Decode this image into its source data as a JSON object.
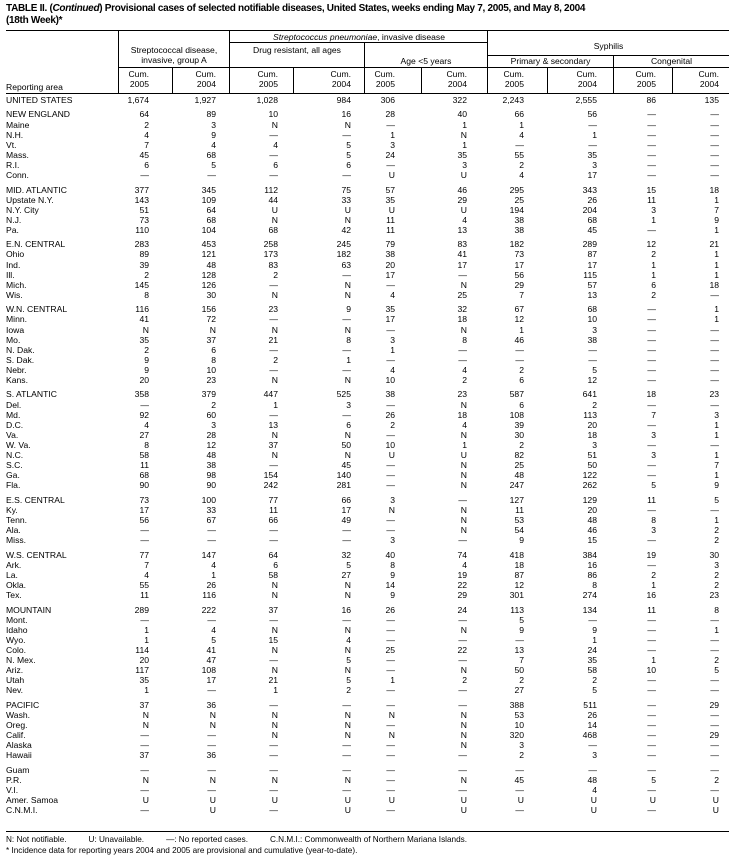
{
  "title": {
    "prefix": "TABLE II. (",
    "continued": "Continued",
    "rest": ") Provisional cases of selected notifiable diseases, United States, weeks ending May 7, 2005, and May 8, 2004",
    "line2": "(18th Week)*"
  },
  "header": {
    "reporting_area": "Reporting area",
    "strep_a": "Streptococcal disease, invasive, group A",
    "strep_pneu_italic": "Streptococcus pneumoniae",
    "strep_pneu_rest": ", invasive disease",
    "drug_resistant": "Drug resistant, all ages",
    "age_lt5": "Age <5 years",
    "syphilis": "Syphilis",
    "primary_secondary": "Primary & secondary",
    "congenital": "Congenital",
    "cum": "Cum.",
    "years": [
      "2005",
      "2004",
      "2005",
      "2004",
      "2005",
      "2004",
      "2005",
      "2004",
      "2005",
      "2004"
    ]
  },
  "sections": [
    [
      {
        "area": "UNITED STATES",
        "v": [
          "1,674",
          "1,927",
          "1,028",
          "984",
          "306",
          "322",
          "2,243",
          "2,555",
          "86",
          "135"
        ]
      }
    ],
    [
      {
        "area": "NEW ENGLAND",
        "v": [
          "64",
          "89",
          "10",
          "16",
          "28",
          "40",
          "66",
          "56",
          "—",
          "—"
        ]
      },
      {
        "area": "Maine",
        "v": [
          "2",
          "3",
          "N",
          "N",
          "—",
          "1",
          "1",
          "—",
          "—",
          "—"
        ]
      },
      {
        "area": "N.H.",
        "v": [
          "4",
          "9",
          "—",
          "—",
          "1",
          "N",
          "4",
          "1",
          "—",
          "—"
        ]
      },
      {
        "area": "Vt.",
        "v": [
          "7",
          "4",
          "4",
          "5",
          "3",
          "1",
          "—",
          "—",
          "—",
          "—"
        ]
      },
      {
        "area": "Mass.",
        "v": [
          "45",
          "68",
          "—",
          "5",
          "24",
          "35",
          "55",
          "35",
          "—",
          "—"
        ]
      },
      {
        "area": "R.I.",
        "v": [
          "6",
          "5",
          "6",
          "6",
          "—",
          "3",
          "2",
          "3",
          "—",
          "—"
        ]
      },
      {
        "area": "Conn.",
        "v": [
          "—",
          "—",
          "—",
          "—",
          "U",
          "U",
          "4",
          "17",
          "—",
          "—"
        ]
      }
    ],
    [
      {
        "area": "MID. ATLANTIC",
        "v": [
          "377",
          "345",
          "112",
          "75",
          "57",
          "46",
          "295",
          "343",
          "15",
          "18"
        ]
      },
      {
        "area": "Upstate N.Y.",
        "v": [
          "143",
          "109",
          "44",
          "33",
          "35",
          "29",
          "25",
          "26",
          "11",
          "1"
        ]
      },
      {
        "area": "N.Y. City",
        "v": [
          "51",
          "64",
          "U",
          "U",
          "U",
          "U",
          "194",
          "204",
          "3",
          "7"
        ]
      },
      {
        "area": "N.J.",
        "v": [
          "73",
          "68",
          "N",
          "N",
          "11",
          "4",
          "38",
          "68",
          "1",
          "9"
        ]
      },
      {
        "area": "Pa.",
        "v": [
          "110",
          "104",
          "68",
          "42",
          "11",
          "13",
          "38",
          "45",
          "—",
          "1"
        ]
      }
    ],
    [
      {
        "area": "E.N. CENTRAL",
        "v": [
          "283",
          "453",
          "258",
          "245",
          "79",
          "83",
          "182",
          "289",
          "12",
          "21"
        ]
      },
      {
        "area": "Ohio",
        "v": [
          "89",
          "121",
          "173",
          "182",
          "38",
          "41",
          "73",
          "87",
          "2",
          "1"
        ]
      },
      {
        "area": "Ind.",
        "v": [
          "39",
          "48",
          "83",
          "63",
          "20",
          "17",
          "17",
          "17",
          "1",
          "1"
        ]
      },
      {
        "area": "Ill.",
        "v": [
          "2",
          "128",
          "2",
          "—",
          "17",
          "—",
          "56",
          "115",
          "1",
          "1"
        ]
      },
      {
        "area": "Mich.",
        "v": [
          "145",
          "126",
          "—",
          "N",
          "—",
          "N",
          "29",
          "57",
          "6",
          "18"
        ]
      },
      {
        "area": "Wis.",
        "v": [
          "8",
          "30",
          "N",
          "N",
          "4",
          "25",
          "7",
          "13",
          "2",
          "—"
        ]
      }
    ],
    [
      {
        "area": "W.N. CENTRAL",
        "v": [
          "116",
          "156",
          "23",
          "9",
          "35",
          "32",
          "67",
          "68",
          "—",
          "1"
        ]
      },
      {
        "area": "Minn.",
        "v": [
          "41",
          "72",
          "—",
          "—",
          "17",
          "18",
          "12",
          "10",
          "—",
          "1"
        ]
      },
      {
        "area": "Iowa",
        "v": [
          "N",
          "N",
          "N",
          "N",
          "—",
          "N",
          "1",
          "3",
          "—",
          "—"
        ]
      },
      {
        "area": "Mo.",
        "v": [
          "35",
          "37",
          "21",
          "8",
          "3",
          "8",
          "46",
          "38",
          "—",
          "—"
        ]
      },
      {
        "area": "N. Dak.",
        "v": [
          "2",
          "6",
          "—",
          "—",
          "1",
          "—",
          "—",
          "—",
          "—",
          "—"
        ]
      },
      {
        "area": "S. Dak.",
        "v": [
          "9",
          "8",
          "2",
          "1",
          "—",
          "—",
          "—",
          "—",
          "—",
          "—"
        ]
      },
      {
        "area": "Nebr.",
        "v": [
          "9",
          "10",
          "—",
          "—",
          "4",
          "4",
          "2",
          "5",
          "—",
          "—"
        ]
      },
      {
        "area": "Kans.",
        "v": [
          "20",
          "23",
          "N",
          "N",
          "10",
          "2",
          "6",
          "12",
          "—",
          "—"
        ]
      }
    ],
    [
      {
        "area": "S. ATLANTIC",
        "v": [
          "358",
          "379",
          "447",
          "525",
          "38",
          "23",
          "587",
          "641",
          "18",
          "23"
        ]
      },
      {
        "area": "Del.",
        "v": [
          "—",
          "2",
          "1",
          "3",
          "—",
          "N",
          "6",
          "2",
          "—",
          "—"
        ]
      },
      {
        "area": "Md.",
        "v": [
          "92",
          "60",
          "—",
          "—",
          "26",
          "18",
          "108",
          "113",
          "7",
          "3"
        ]
      },
      {
        "area": "D.C.",
        "v": [
          "4",
          "3",
          "13",
          "6",
          "2",
          "4",
          "39",
          "20",
          "—",
          "1"
        ]
      },
      {
        "area": "Va.",
        "v": [
          "27",
          "28",
          "N",
          "N",
          "—",
          "N",
          "30",
          "18",
          "3",
          "1"
        ]
      },
      {
        "area": "W. Va.",
        "v": [
          "8",
          "12",
          "37",
          "50",
          "10",
          "1",
          "2",
          "3",
          "—",
          "—"
        ]
      },
      {
        "area": "N.C.",
        "v": [
          "58",
          "48",
          "N",
          "N",
          "U",
          "U",
          "82",
          "51",
          "3",
          "1"
        ]
      },
      {
        "area": "S.C.",
        "v": [
          "11",
          "38",
          "—",
          "45",
          "—",
          "N",
          "25",
          "50",
          "—",
          "7"
        ]
      },
      {
        "area": "Ga.",
        "v": [
          "68",
          "98",
          "154",
          "140",
          "—",
          "N",
          "48",
          "122",
          "—",
          "1"
        ]
      },
      {
        "area": "Fla.",
        "v": [
          "90",
          "90",
          "242",
          "281",
          "—",
          "N",
          "247",
          "262",
          "5",
          "9"
        ]
      }
    ],
    [
      {
        "area": "E.S. CENTRAL",
        "v": [
          "73",
          "100",
          "77",
          "66",
          "3",
          "—",
          "127",
          "129",
          "11",
          "5"
        ]
      },
      {
        "area": "Ky.",
        "v": [
          "17",
          "33",
          "11",
          "17",
          "N",
          "N",
          "11",
          "20",
          "—",
          "—"
        ]
      },
      {
        "area": "Tenn.",
        "v": [
          "56",
          "67",
          "66",
          "49",
          "—",
          "N",
          "53",
          "48",
          "8",
          "1"
        ]
      },
      {
        "area": "Ala.",
        "v": [
          "—",
          "—",
          "—",
          "—",
          "—",
          "N",
          "54",
          "46",
          "3",
          "2"
        ]
      },
      {
        "area": "Miss.",
        "v": [
          "—",
          "—",
          "—",
          "—",
          "3",
          "—",
          "9",
          "15",
          "—",
          "2"
        ]
      }
    ],
    [
      {
        "area": "W.S. CENTRAL",
        "v": [
          "77",
          "147",
          "64",
          "32",
          "40",
          "74",
          "418",
          "384",
          "19",
          "30"
        ]
      },
      {
        "area": "Ark.",
        "v": [
          "7",
          "4",
          "6",
          "5",
          "8",
          "4",
          "18",
          "16",
          "—",
          "3"
        ]
      },
      {
        "area": "La.",
        "v": [
          "4",
          "1",
          "58",
          "27",
          "9",
          "19",
          "87",
          "86",
          "2",
          "2"
        ]
      },
      {
        "area": "Okla.",
        "v": [
          "55",
          "26",
          "N",
          "N",
          "14",
          "22",
          "12",
          "8",
          "1",
          "2"
        ]
      },
      {
        "area": "Tex.",
        "v": [
          "11",
          "116",
          "N",
          "N",
          "9",
          "29",
          "301",
          "274",
          "16",
          "23"
        ]
      }
    ],
    [
      {
        "area": "MOUNTAIN",
        "v": [
          "289",
          "222",
          "37",
          "16",
          "26",
          "24",
          "113",
          "134",
          "11",
          "8"
        ]
      },
      {
        "area": "Mont.",
        "v": [
          "—",
          "—",
          "—",
          "—",
          "—",
          "—",
          "5",
          "—",
          "—",
          "—"
        ]
      },
      {
        "area": "Idaho",
        "v": [
          "1",
          "4",
          "N",
          "N",
          "—",
          "N",
          "9",
          "9",
          "—",
          "1"
        ]
      },
      {
        "area": "Wyo.",
        "v": [
          "1",
          "5",
          "15",
          "4",
          "—",
          "—",
          "—",
          "1",
          "—",
          "—"
        ]
      },
      {
        "area": "Colo.",
        "v": [
          "114",
          "41",
          "N",
          "N",
          "25",
          "22",
          "13",
          "24",
          "—",
          "—"
        ]
      },
      {
        "area": "N. Mex.",
        "v": [
          "20",
          "47",
          "—",
          "5",
          "—",
          "—",
          "7",
          "35",
          "1",
          "2"
        ]
      },
      {
        "area": "Ariz.",
        "v": [
          "117",
          "108",
          "N",
          "N",
          "—",
          "N",
          "50",
          "58",
          "10",
          "5"
        ]
      },
      {
        "area": "Utah",
        "v": [
          "35",
          "17",
          "21",
          "5",
          "1",
          "2",
          "2",
          "2",
          "—",
          "—"
        ]
      },
      {
        "area": "Nev.",
        "v": [
          "1",
          "—",
          "1",
          "2",
          "—",
          "—",
          "27",
          "5",
          "—",
          "—"
        ]
      }
    ],
    [
      {
        "area": "PACIFIC",
        "v": [
          "37",
          "36",
          "—",
          "—",
          "—",
          "—",
          "388",
          "511",
          "—",
          "29"
        ]
      },
      {
        "area": "Wash.",
        "v": [
          "N",
          "N",
          "N",
          "N",
          "N",
          "N",
          "53",
          "26",
          "—",
          "—"
        ]
      },
      {
        "area": "Oreg.",
        "v": [
          "N",
          "N",
          "N",
          "N",
          "—",
          "N",
          "10",
          "14",
          "—",
          "—"
        ]
      },
      {
        "area": "Calif.",
        "v": [
          "—",
          "—",
          "N",
          "N",
          "N",
          "N",
          "320",
          "468",
          "—",
          "29"
        ]
      },
      {
        "area": "Alaska",
        "v": [
          "—",
          "—",
          "—",
          "—",
          "—",
          "N",
          "3",
          "—",
          "—",
          "—"
        ]
      },
      {
        "area": "Hawaii",
        "v": [
          "37",
          "36",
          "—",
          "—",
          "—",
          "—",
          "2",
          "3",
          "—",
          "—"
        ]
      }
    ],
    [
      {
        "area": "Guam",
        "v": [
          "—",
          "—",
          "—",
          "—",
          "—",
          "—",
          "—",
          "—",
          "—",
          "—"
        ]
      },
      {
        "area": "P.R.",
        "v": [
          "N",
          "N",
          "N",
          "N",
          "—",
          "N",
          "45",
          "48",
          "5",
          "2"
        ]
      },
      {
        "area": "V.I.",
        "v": [
          "—",
          "—",
          "—",
          "—",
          "—",
          "—",
          "—",
          "4",
          "—",
          "—"
        ]
      },
      {
        "area": "Amer. Samoa",
        "v": [
          "U",
          "U",
          "U",
          "U",
          "U",
          "U",
          "U",
          "U",
          "U",
          "U"
        ]
      },
      {
        "area": "C.N.M.I.",
        "v": [
          "—",
          "U",
          "—",
          "U",
          "—",
          "U",
          "—",
          "U",
          "—",
          "U"
        ]
      }
    ]
  ],
  "footnotes": {
    "legend": [
      "N: Not notifiable.",
      "U: Unavailable.",
      "—: No reported cases.",
      "C.N.M.I.: Commonwealth of Northern Mariana Islands."
    ],
    "note": "* Incidence data for reporting years 2004 and 2005 are provisional and cumulative (year-to-date)."
  }
}
